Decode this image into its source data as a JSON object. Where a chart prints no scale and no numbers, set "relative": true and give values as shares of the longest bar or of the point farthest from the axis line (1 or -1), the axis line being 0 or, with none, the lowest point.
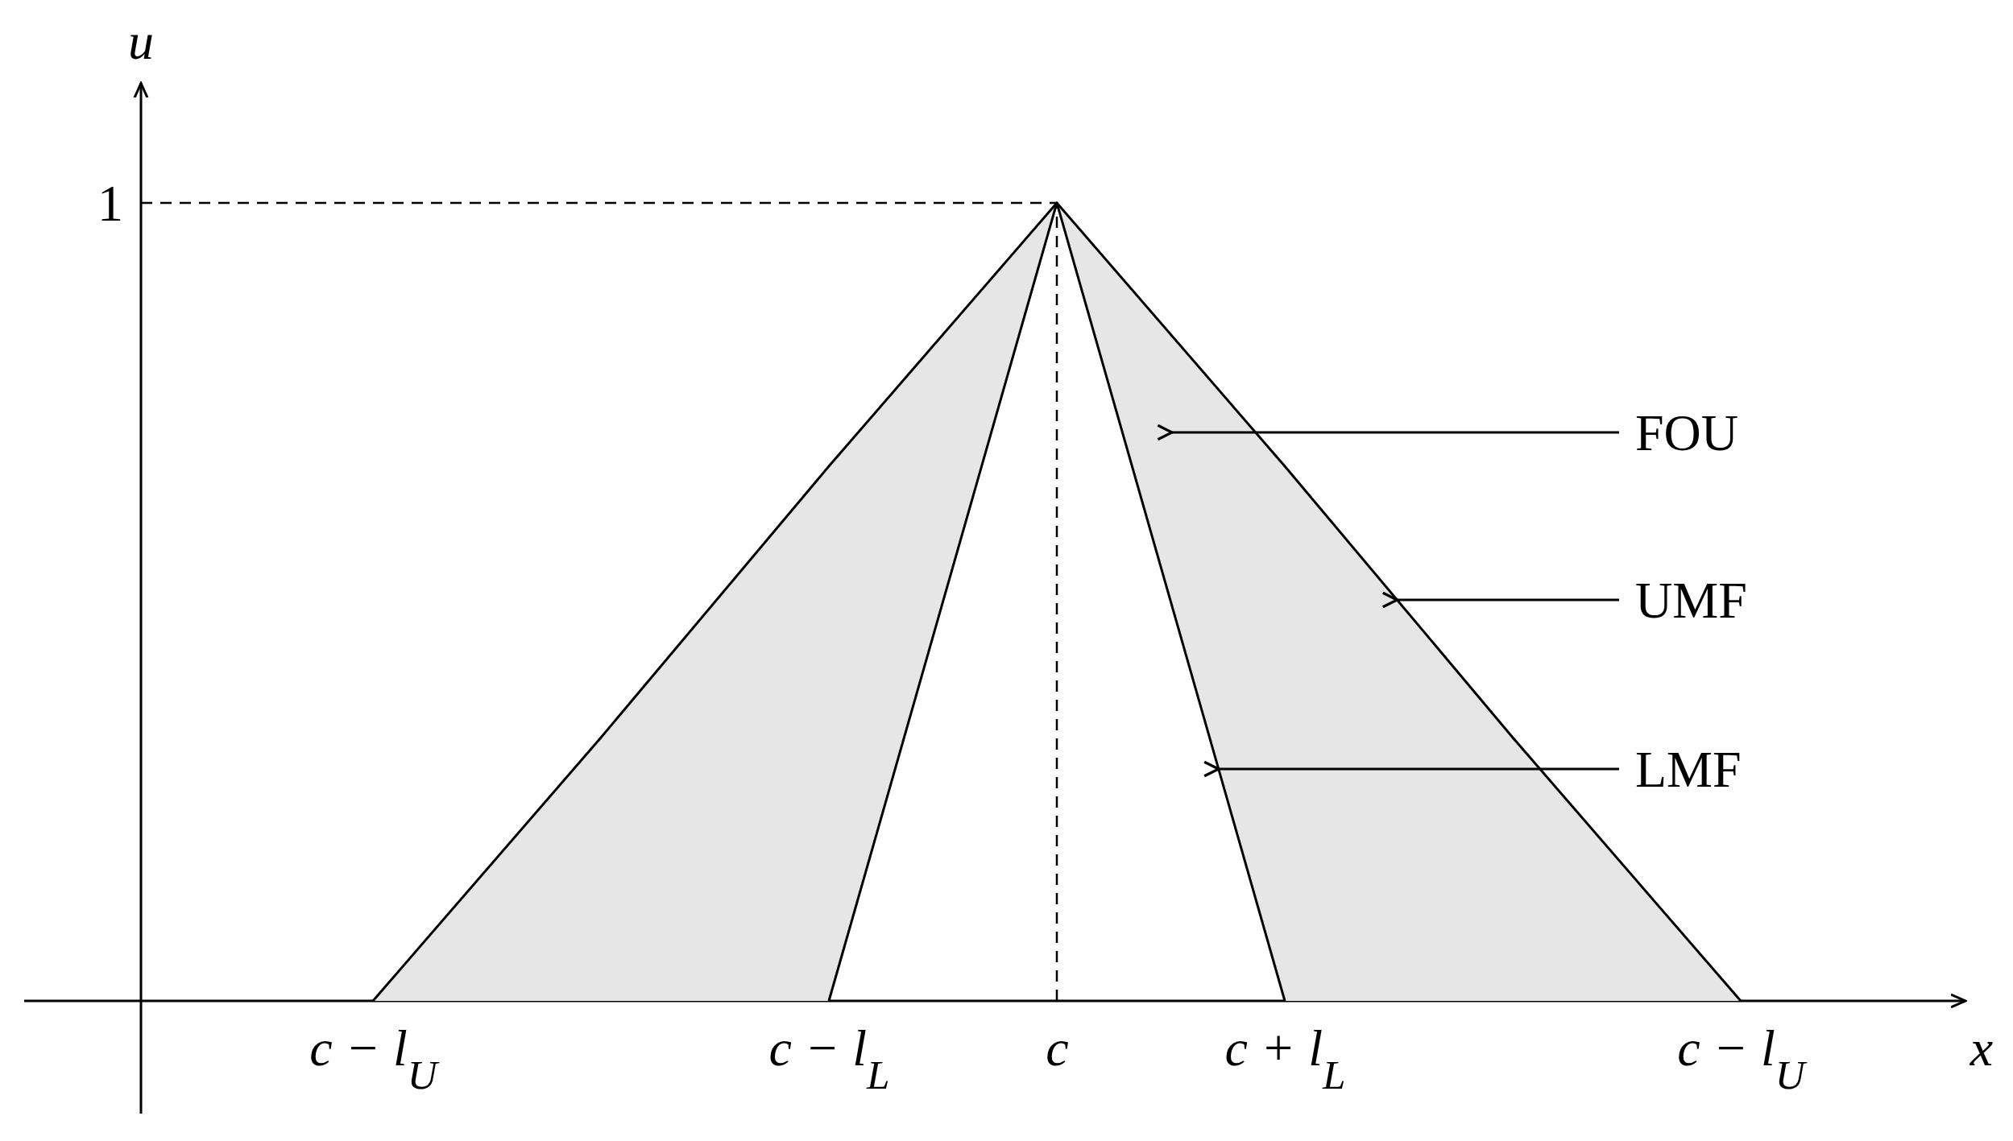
{
  "chart_data": {
    "type": "line",
    "xlabel": "x",
    "ylabel": "u",
    "categories": [
      "c − l$_{U}$",
      null,
      "c − l$_{L}$",
      "c",
      "c + l$_{L}$",
      null,
      "c − l$_{U}$"
    ],
    "relative": true,
    "series": [
      {
        "name": "UMF",
        "color": "#000000",
        "values": [
          0,
          0.33,
          0.67,
          1,
          0.67,
          0.33,
          0
        ],
        "lower": [
          0,
          0,
          0,
          1,
          0,
          0,
          0
        ],
        "upper": [
          0,
          0.33,
          0.67,
          1,
          0.67,
          0.33,
          0
        ]
      },
      {
        "name": "LMF",
        "color": "#000000",
        "values": [
          null,
          null,
          0,
          1,
          0,
          null,
          null
        ]
      }
    ],
    "line_style": "solid",
    "marker": "none",
    "grid": false,
    "ref_lines": [
      {
        "axis": "y",
        "value": 1,
        "label": "1",
        "line_style": "dashed"
      },
      {
        "axis": "x",
        "value": "c",
        "line_style": "dashed"
      }
    ],
    "annotations": [
      "FOU"
    ]
  }
}
